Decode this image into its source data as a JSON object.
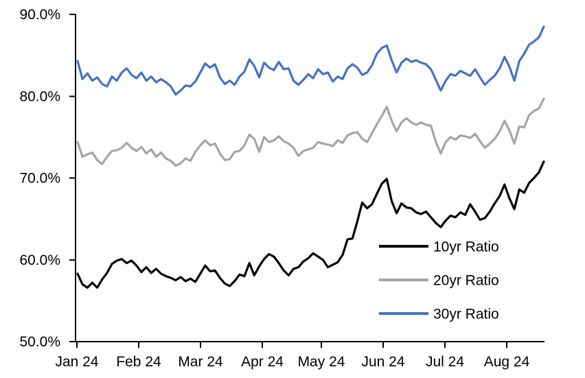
{
  "figure": {
    "background_color": "#ffffff",
    "text_color": "#000000"
  },
  "chart_data": {
    "type": "line",
    "title": "",
    "x_axis": {
      "ticks": [
        {
          "label": "Jan 24"
        },
        {
          "label": "Feb 24"
        },
        {
          "label": "Mar 24"
        },
        {
          "label": "Apr 24"
        },
        {
          "label": "May 24"
        },
        {
          "label": "Jun 24"
        },
        {
          "label": "Jul 24"
        },
        {
          "label": "Aug 24"
        }
      ],
      "note": "daily observations from Jan 2024 through mid/late Aug 2024"
    },
    "y_axis": {
      "min": 50,
      "max": 90,
      "unit": "%",
      "ticks": [
        {
          "label": "90.0%",
          "value": 90
        },
        {
          "label": "80.0%",
          "value": 80
        },
        {
          "label": "70.0%",
          "value": 70
        },
        {
          "label": "60.0%",
          "value": 60
        },
        {
          "label": "50.0%",
          "value": 50
        }
      ]
    },
    "grid": "off",
    "legend": {
      "position": "inside-lower-right",
      "entries": [
        {
          "label": "10yr Ratio",
          "color": "#000000"
        },
        {
          "label": "20yr Ratio",
          "color": "#A5A5A5"
        },
        {
          "label": "30yr Ratio",
          "color": "#4472C4"
        }
      ]
    },
    "series": [
      {
        "name": "10yr Ratio",
        "color": "#000000",
        "values": [
          58.3,
          57.0,
          56.6,
          57.2,
          56.6,
          57.6,
          58.4,
          59.5,
          59.9,
          60.1,
          59.6,
          59.9,
          59.3,
          58.5,
          59.1,
          58.4,
          58.9,
          58.3,
          58.0,
          57.8,
          57.5,
          57.9,
          57.4,
          57.7,
          57.3,
          58.3,
          59.3,
          58.6,
          58.7,
          57.8,
          57.1,
          56.8,
          57.4,
          58.2,
          58.0,
          59.6,
          58.1,
          59.2,
          60.1,
          60.7,
          60.4,
          59.6,
          58.7,
          58.1,
          58.9,
          59.1,
          59.8,
          60.2,
          60.8,
          60.4,
          60.0,
          59.1,
          59.4,
          59.7,
          60.6,
          62.5,
          62.6,
          64.7,
          67.0,
          66.3,
          66.8,
          68.1,
          69.3,
          69.9,
          67.2,
          65.7,
          66.9,
          66.4,
          66.3,
          65.8,
          65.6,
          65.9,
          65.2,
          64.5,
          64.0,
          64.8,
          65.4,
          65.2,
          65.8,
          65.5,
          66.8,
          65.9,
          64.9,
          65.1,
          65.9,
          66.9,
          67.8,
          69.2,
          67.5,
          66.2,
          68.6,
          68.2,
          69.4,
          70.0,
          70.7,
          72.0
        ]
      },
      {
        "name": "20yr Ratio",
        "color": "#A5A5A5",
        "values": [
          74.4,
          72.6,
          72.9,
          73.1,
          72.2,
          71.7,
          72.6,
          73.3,
          73.4,
          73.7,
          74.3,
          73.7,
          73.3,
          73.8,
          73.0,
          73.5,
          72.6,
          73.1,
          72.4,
          72.1,
          71.5,
          71.8,
          72.4,
          72.1,
          73.2,
          74.0,
          74.6,
          74.0,
          74.2,
          73.0,
          72.2,
          72.3,
          73.2,
          73.3,
          74.0,
          75.3,
          74.8,
          73.2,
          75.0,
          74.4,
          74.6,
          75.1,
          74.5,
          74.2,
          73.7,
          72.7,
          73.3,
          73.5,
          73.7,
          74.4,
          74.2,
          74.1,
          73.9,
          74.6,
          74.3,
          75.2,
          75.5,
          75.6,
          74.8,
          74.4,
          75.5,
          76.6,
          77.6,
          78.7,
          77.0,
          75.7,
          76.8,
          77.3,
          76.8,
          76.5,
          76.8,
          76.5,
          76.4,
          74.4,
          73.0,
          74.4,
          75.0,
          74.7,
          75.2,
          75.1,
          74.9,
          75.4,
          74.5,
          73.7,
          74.2,
          74.8,
          75.7,
          77.0,
          75.8,
          74.2,
          76.3,
          76.2,
          77.7,
          78.2,
          78.5,
          79.7
        ]
      },
      {
        "name": "30yr Ratio",
        "color": "#4472C4",
        "values": [
          84.3,
          82.1,
          82.8,
          81.9,
          82.3,
          81.5,
          81.2,
          82.4,
          81.9,
          82.9,
          83.4,
          82.6,
          82.2,
          82.9,
          81.9,
          82.4,
          81.7,
          82.1,
          81.7,
          81.2,
          80.2,
          80.7,
          81.3,
          81.2,
          81.8,
          82.9,
          84.0,
          83.5,
          83.9,
          82.3,
          81.5,
          81.9,
          81.4,
          82.4,
          83.0,
          84.5,
          83.7,
          82.3,
          84.1,
          83.5,
          83.2,
          84.2,
          83.3,
          83.4,
          81.9,
          81.4,
          82.0,
          82.7,
          82.2,
          83.3,
          82.7,
          82.9,
          81.8,
          82.4,
          82.1,
          83.4,
          83.9,
          83.5,
          82.6,
          82.9,
          83.8,
          85.2,
          85.9,
          86.2,
          84.4,
          82.9,
          84.1,
          84.6,
          84.2,
          84.4,
          84.1,
          83.9,
          83.3,
          82.0,
          80.7,
          81.9,
          82.7,
          82.5,
          83.1,
          82.8,
          82.5,
          83.3,
          82.3,
          81.4,
          82.0,
          82.5,
          83.4,
          84.8,
          83.6,
          81.9,
          84.3,
          85.2,
          86.3,
          86.7,
          87.2,
          88.5
        ]
      }
    ]
  }
}
